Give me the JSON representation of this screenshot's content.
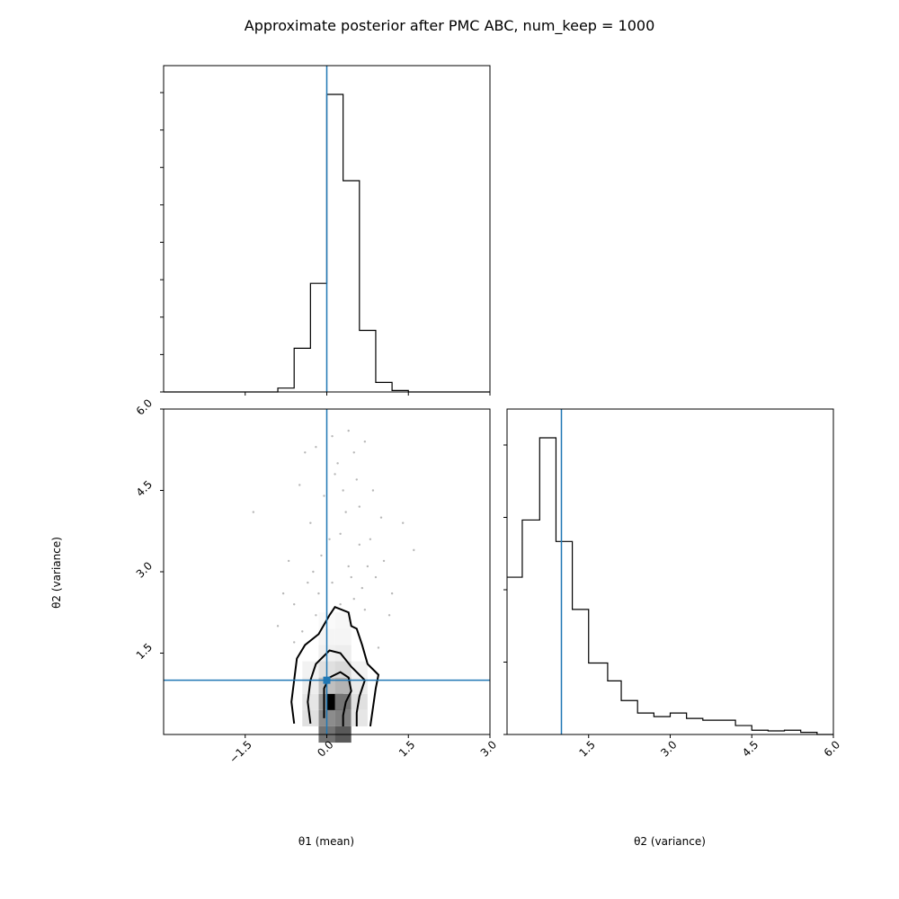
{
  "figure": {
    "title": "Approximate posterior after PMC ABC, num_keep = 1000"
  },
  "colors": {
    "truth": "#1f77b4",
    "hist": "#000000",
    "points": "#9a9a9a"
  },
  "chart_data": [
    {
      "panel": "theta1-marginal",
      "type": "histogram",
      "xlim": [
        -3.0,
        3.0
      ],
      "truth_x": 0.0,
      "bin_edges": [
        -3.0,
        -2.7,
        -2.4,
        -2.1,
        -1.8,
        -1.5,
        -1.2,
        -0.9,
        -0.6,
        -0.3,
        0.0,
        0.3,
        0.6,
        0.9,
        1.2,
        1.5,
        1.8,
        2.1,
        2.4,
        2.7,
        3.0
      ],
      "counts": [
        0,
        0,
        0,
        0,
        0,
        0,
        0,
        0.013,
        0.147,
        0.365,
        1.0,
        0.71,
        0.207,
        0.032,
        0.005,
        0,
        0,
        0,
        0,
        0
      ],
      "ytick_count": 9
    },
    {
      "panel": "joint",
      "type": "scatter",
      "xlim": [
        -3.0,
        3.0
      ],
      "ylim": [
        0.0,
        6.0
      ],
      "xlabel": "θ1 (mean)",
      "ylabel": "θ2 (variance)",
      "xticks": [
        "−1.5",
        "0.0",
        "1.5",
        "3.0"
      ],
      "xtick_values": [
        -1.5,
        0.0,
        1.5,
        3.0
      ],
      "yticks": [
        "1.5",
        "3.0",
        "4.5",
        "6.0"
      ],
      "ytick_values": [
        1.5,
        3.0,
        4.5,
        6.0
      ],
      "truth": [
        0.0,
        1.0
      ],
      "density_cells": [
        {
          "x": 0.0,
          "y": 0.0,
          "v": 0.55
        },
        {
          "x": 0.0,
          "y": 0.3,
          "v": 0.45
        },
        {
          "x": 0.0,
          "y": 0.6,
          "v": 0.4
        },
        {
          "x": 0.3,
          "y": 0.0,
          "v": 0.65
        },
        {
          "x": 0.3,
          "y": 0.3,
          "v": 0.5
        },
        {
          "x": 0.15,
          "y": 0.6,
          "v": 1.0
        },
        {
          "x": 0.3,
          "y": 0.6,
          "v": 0.55
        },
        {
          "x": 0.3,
          "y": 0.9,
          "v": 0.3
        },
        {
          "x": 0.0,
          "y": 0.9,
          "v": 0.25
        },
        {
          "x": -0.3,
          "y": 0.3,
          "v": 0.12
        },
        {
          "x": -0.3,
          "y": 0.6,
          "v": 0.1
        },
        {
          "x": 0.6,
          "y": 0.6,
          "v": 0.12
        },
        {
          "x": 0.6,
          "y": 0.3,
          "v": 0.1
        },
        {
          "x": 0.0,
          "y": 1.2,
          "v": 0.12
        },
        {
          "x": 0.3,
          "y": 1.2,
          "v": 0.15
        },
        {
          "x": -0.3,
          "y": 0.9,
          "v": 0.07
        },
        {
          "x": 0.6,
          "y": 0.9,
          "v": 0.08
        },
        {
          "x": 0.0,
          "y": 1.5,
          "v": 0.06
        },
        {
          "x": 0.3,
          "y": 1.5,
          "v": 0.07
        },
        {
          "x": -0.3,
          "y": 1.2,
          "v": 0.05
        },
        {
          "x": 0.6,
          "y": 1.2,
          "v": 0.05
        },
        {
          "x": 0.0,
          "y": 1.8,
          "v": 0.04
        },
        {
          "x": 0.3,
          "y": 1.8,
          "v": 0.04
        },
        {
          "x": 0.3,
          "y": 2.1,
          "v": 0.03
        },
        {
          "x": 0.0,
          "y": 2.1,
          "v": 0.02
        }
      ],
      "points": [
        [
          -0.45,
          1.9
        ],
        [
          -0.2,
          2.2
        ],
        [
          -0.6,
          2.4
        ],
        [
          0.5,
          2.5
        ],
        [
          0.7,
          2.3
        ],
        [
          0.1,
          2.8
        ],
        [
          0.4,
          3.1
        ],
        [
          -0.1,
          3.3
        ],
        [
          0.6,
          3.5
        ],
        [
          0.25,
          3.7
        ],
        [
          -0.3,
          3.9
        ],
        [
          0.8,
          3.6
        ],
        [
          0.35,
          4.1
        ],
        [
          -0.05,
          4.4
        ],
        [
          0.55,
          4.7
        ],
        [
          0.2,
          5.0
        ],
        [
          -0.4,
          5.2
        ],
        [
          0.7,
          5.4
        ],
        [
          0.1,
          5.5
        ],
        [
          -1.35,
          4.1
        ],
        [
          1.6,
          3.4
        ],
        [
          1.0,
          4.0
        ],
        [
          -0.7,
          3.2
        ],
        [
          0.9,
          2.9
        ],
        [
          -0.8,
          2.6
        ],
        [
          1.15,
          2.2
        ],
        [
          0.45,
          2.9
        ],
        [
          -0.15,
          2.6
        ],
        [
          0.3,
          4.5
        ],
        [
          0.6,
          4.2
        ],
        [
          -0.5,
          4.6
        ],
        [
          0.05,
          3.6
        ],
        [
          0.75,
          3.1
        ],
        [
          -0.25,
          3.0
        ],
        [
          0.15,
          4.8
        ],
        [
          0.5,
          5.2
        ],
        [
          -0.6,
          1.7
        ],
        [
          0.95,
          1.6
        ],
        [
          1.2,
          2.6
        ],
        [
          -0.9,
          2.0
        ],
        [
          1.05,
          3.2
        ],
        [
          0.25,
          2.4
        ],
        [
          -0.35,
          2.8
        ],
        [
          0.65,
          2.7
        ],
        [
          0.85,
          4.5
        ],
        [
          -0.2,
          5.3
        ],
        [
          0.4,
          5.6
        ],
        [
          1.4,
          3.9
        ]
      ],
      "contours": [
        [
          [
            -0.6,
            0.2
          ],
          [
            -0.65,
            0.6
          ],
          [
            -0.6,
            1.0
          ],
          [
            -0.55,
            1.4
          ],
          [
            -0.4,
            1.65
          ],
          [
            -0.15,
            1.85
          ],
          [
            0.05,
            2.2
          ],
          [
            0.15,
            2.35
          ],
          [
            0.4,
            2.25
          ],
          [
            0.45,
            2.0
          ],
          [
            0.55,
            1.95
          ],
          [
            0.65,
            1.65
          ],
          [
            0.75,
            1.3
          ],
          [
            0.95,
            1.1
          ],
          [
            0.9,
            0.85
          ],
          [
            0.85,
            0.5
          ],
          [
            0.8,
            0.15
          ]
        ],
        [
          [
            -0.3,
            0.2
          ],
          [
            -0.35,
            0.6
          ],
          [
            -0.3,
            1.0
          ],
          [
            -0.2,
            1.3
          ],
          [
            0.05,
            1.55
          ],
          [
            0.25,
            1.5
          ],
          [
            0.45,
            1.25
          ],
          [
            0.7,
            1.0
          ],
          [
            0.6,
            0.7
          ],
          [
            0.55,
            0.4
          ],
          [
            0.55,
            0.15
          ]
        ],
        [
          [
            -0.05,
            0.3
          ],
          [
            -0.05,
            0.6
          ],
          [
            -0.05,
            0.85
          ],
          [
            0.05,
            1.05
          ],
          [
            0.25,
            1.15
          ],
          [
            0.4,
            1.05
          ],
          [
            0.45,
            0.8
          ],
          [
            0.35,
            0.6
          ],
          [
            0.3,
            0.35
          ],
          [
            0.3,
            0.15
          ]
        ]
      ]
    },
    {
      "panel": "theta2-marginal",
      "type": "histogram",
      "xlim": [
        0.0,
        6.0
      ],
      "xlabel": "θ2 (variance)",
      "xticks": [
        "1.5",
        "3.0",
        "4.5",
        "6.0"
      ],
      "xtick_values": [
        1.5,
        3.0,
        4.5,
        6.0
      ],
      "truth_x": 1.0,
      "bin_edges": [
        0.0,
        0.28,
        0.6,
        0.9,
        1.2,
        1.5,
        1.85,
        2.1,
        2.4,
        2.7,
        3.0,
        3.3,
        3.6,
        4.2,
        4.5,
        4.8,
        5.1,
        5.4,
        5.7,
        6.0
      ],
      "counts": [
        0.44,
        0.6,
        0.83,
        0.54,
        0.35,
        0.2,
        0.15,
        0.095,
        0.06,
        0.05,
        0.06,
        0.045,
        0.04,
        0.025,
        0.012,
        0.01,
        0.012,
        0.006,
        0
      ],
      "ytick_count": 5
    }
  ]
}
